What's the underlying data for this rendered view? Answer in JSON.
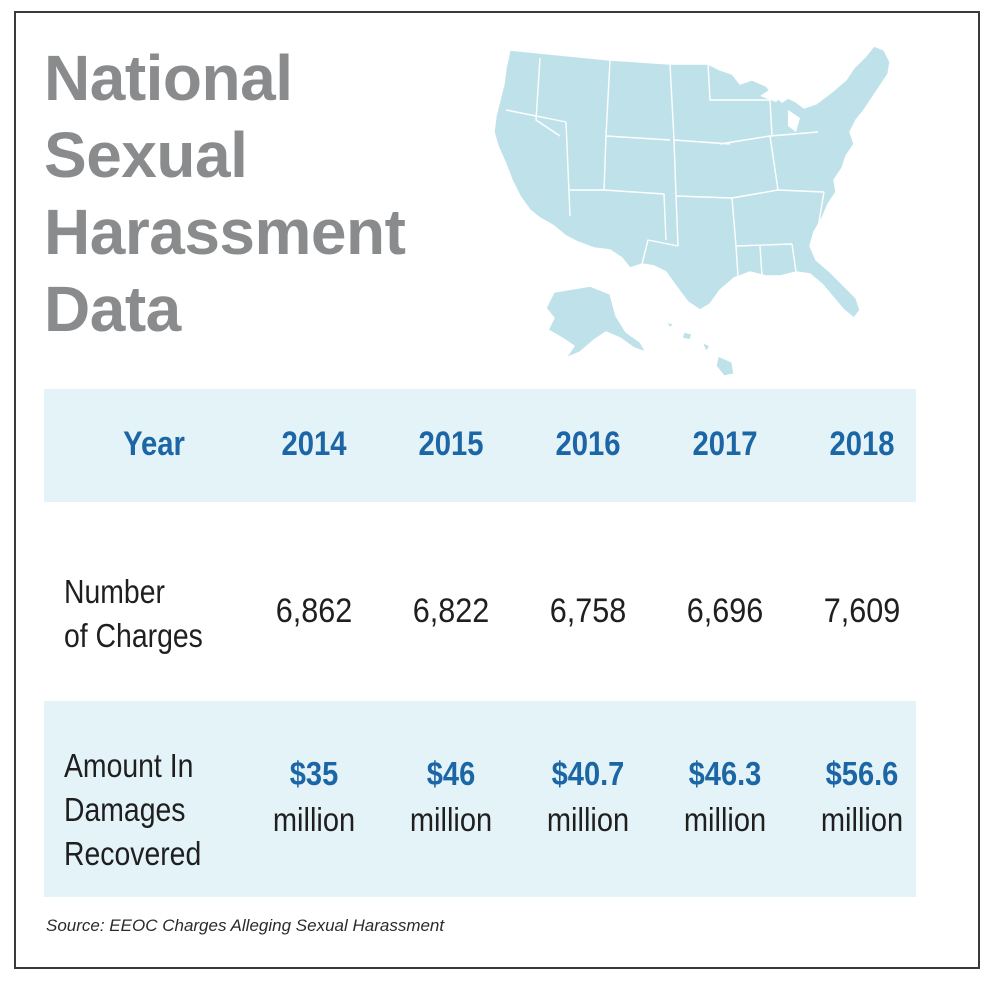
{
  "title_lines": [
    "National",
    "Sexual",
    "Harassment",
    "Data"
  ],
  "chart_data": {
    "type": "table",
    "header_label": "Year",
    "years": [
      "2014",
      "2015",
      "2016",
      "2017",
      "2018"
    ],
    "rows": [
      {
        "label_lines": [
          "Number",
          "of Charges"
        ],
        "values": [
          "6,862",
          "6,822",
          "6,758",
          "6,696",
          "7,609"
        ]
      },
      {
        "label_lines": [
          "Amount In",
          "Damages",
          "Recovered"
        ],
        "amounts": [
          "$35",
          "$46",
          "$40.7",
          "$46.3",
          "$56.6"
        ],
        "unit": "million"
      }
    ]
  },
  "source": "Source: EEOC Charges Alleging Sexual Harassment",
  "colors": {
    "title": "#8a8b8d",
    "accent_blue": "#1c66a5",
    "band": "#e4f3f8",
    "map_fill": "#bfe2ea"
  },
  "icons": [
    "us-map-icon"
  ]
}
